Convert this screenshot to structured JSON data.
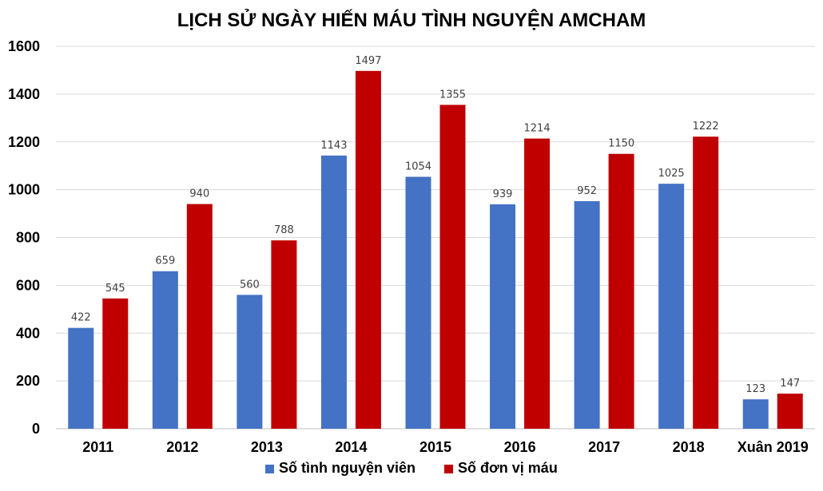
{
  "chart_data": {
    "type": "bar",
    "title": "LỊCH SỬ NGÀY HIẾN MÁU TÌNH NGUYỆN AMCHAM",
    "categories": [
      "2011",
      "2012",
      "2013",
      "2014",
      "2015",
      "2016",
      "2017",
      "2018",
      "Xuân 2019"
    ],
    "series": [
      {
        "name": "Số tình nguyện viên",
        "color": "#4472C4",
        "values": [
          422,
          659,
          560,
          1143,
          1054,
          939,
          952,
          1025,
          123
        ]
      },
      {
        "name": "Số đơn vị máu",
        "color": "#C00000",
        "values": [
          545,
          940,
          788,
          1497,
          1355,
          1214,
          1150,
          1222,
          147
        ]
      }
    ],
    "ylim": [
      0,
      1600
    ],
    "yticks": [
      0,
      200,
      400,
      600,
      800,
      1000,
      1200,
      1400,
      1600
    ],
    "grid": true,
    "legend_position": "bottom",
    "data_labels": true
  }
}
